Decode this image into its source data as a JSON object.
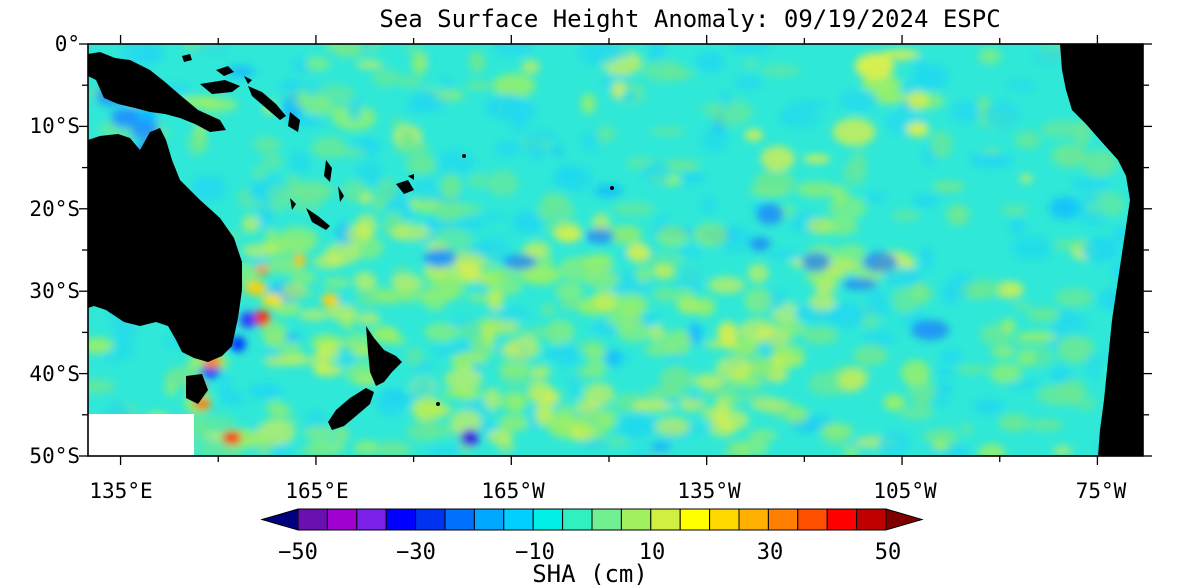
{
  "figure": {
    "title": "Sea Surface Height Anomaly: 09/19/2024 ESPC",
    "lat_labels": [
      "0°",
      "10°S",
      "20°S",
      "30°S",
      "40°S",
      "50°S"
    ],
    "lon_labels": [
      "135°E",
      "165°E",
      "165°W",
      "135°W",
      "105°W",
      "75°W"
    ],
    "lat_range": [
      -50,
      0
    ],
    "lon_range_east_deg": [
      130,
      292
    ],
    "colorbar": {
      "title": "SHA (cm)",
      "min": -55,
      "max": 55,
      "tick_labels": [
        "−50",
        "−30",
        "−10",
        "10",
        "30",
        "50"
      ],
      "colors": [
        "#000080",
        "#6a0fb0",
        "#a000d0",
        "#7a20e8",
        "#0000ff",
        "#0033f0",
        "#0070ff",
        "#00a8ff",
        "#00d0ff",
        "#00f0e8",
        "#30f0c0",
        "#70f090",
        "#a0f060",
        "#d0f040",
        "#ffff00",
        "#ffd800",
        "#ffb000",
        "#ff8000",
        "#ff5000",
        "#ff0000",
        "#c00000",
        "#800000"
      ]
    },
    "field_colors": {
      "background": "#30e8d8",
      "cyan": "#20d8f0",
      "green": "#70e890",
      "lightgreen": "#a0f060",
      "yellow": "#e8f040",
      "blue": "#1878ff",
      "land": "#000000"
    }
  }
}
